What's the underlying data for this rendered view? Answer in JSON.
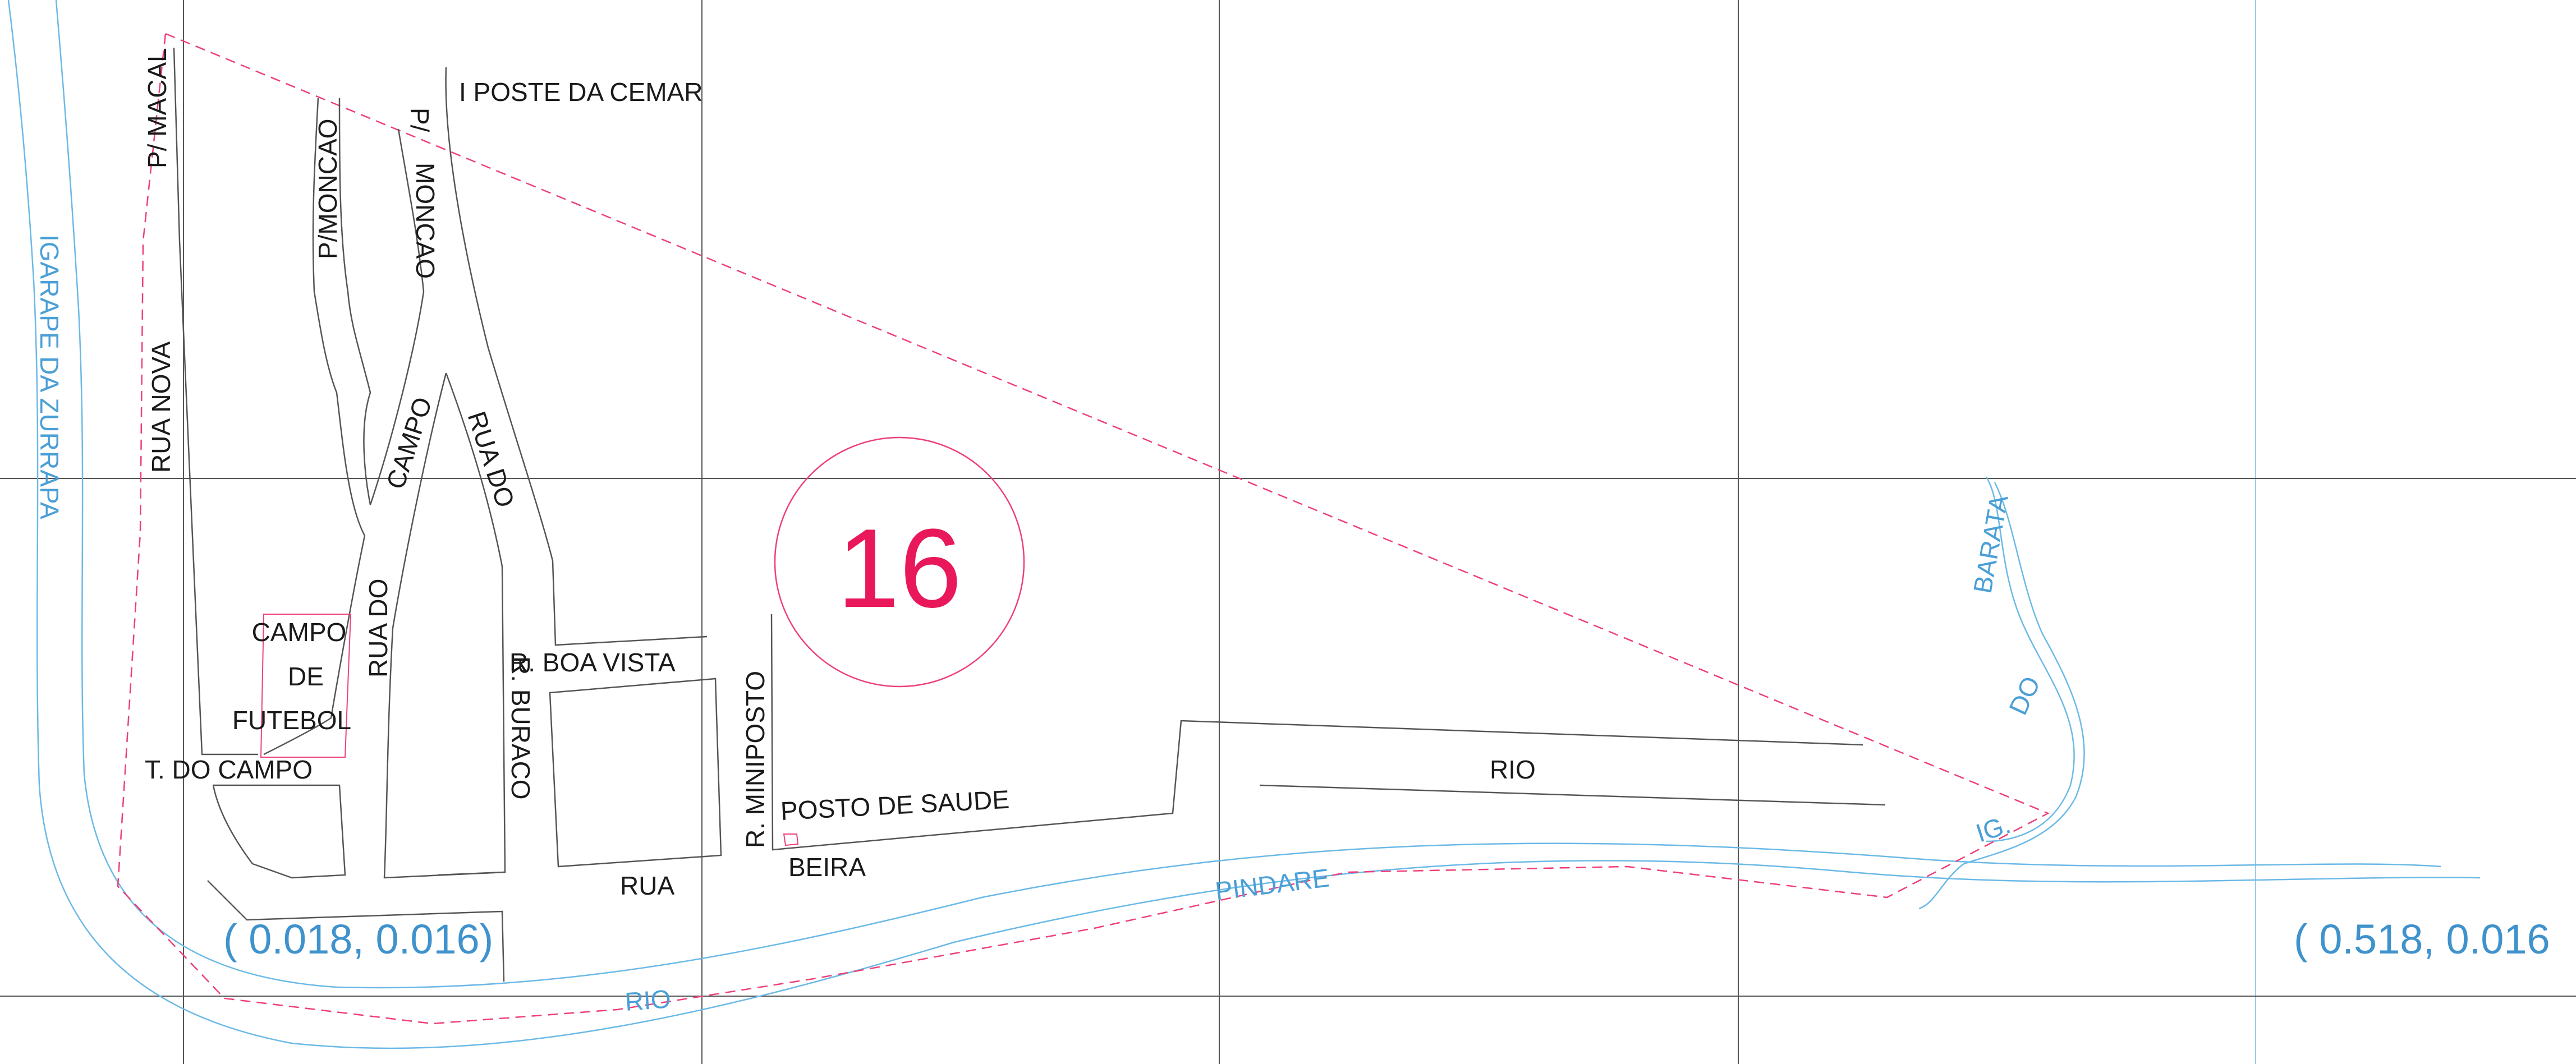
{
  "map": {
    "sheet_number": "16",
    "colors": {
      "grid": "#555555",
      "road": "#555555",
      "water": "#6bb9e6",
      "boundary": "#ee3f7a",
      "sheet_circle": "#ee3f7a",
      "label": "#1a1a1a",
      "water_label": "#4a9fd6",
      "coord_label": "#3f92cc",
      "sheet_number": "#e8185a"
    },
    "streets": {
      "p_macal": "P/  MACAL",
      "rua_nova": "RUA   NOVA",
      "p_moncao_1": "P/MONCAO",
      "p_moncao_2_a": "P/",
      "p_moncao_2_b": "MONCAO",
      "poste_cemar": "I  POSTE  DA   CEMAR",
      "campo": "CAMPO",
      "rua_do_1": "RUA   DO",
      "rua_do_2": "RUA   DO",
      "r_buraco": "R. BURACO",
      "boa_vista": "R.  BOA  VISTA",
      "t_do_campo": "T.  DO  CAMPO",
      "rua": "RUA",
      "beira": "BEIRA",
      "r_miniposto": "R. MINIPOSTO",
      "posto_saude": "POSTO DE SAUDE",
      "rio_road": "RIO"
    },
    "landmarks": {
      "campo_line1": "CAMPO",
      "campo_line2": "DE",
      "campo_line3": "FUTEBOL"
    },
    "water": {
      "igarape": "IGARAPE   DA   ZURRAPA",
      "barata": "BARATA",
      "do": "DO",
      "ig": "IG.",
      "pindare": "PINDARE",
      "rio": "RIO"
    },
    "coords": {
      "left": "( 0.018,  0.016)",
      "right": "( 0.518,  0.016"
    }
  }
}
